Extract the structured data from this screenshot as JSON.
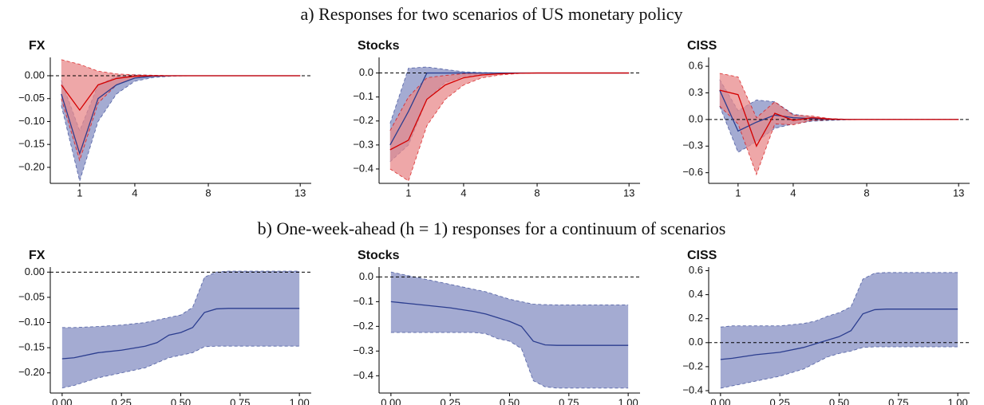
{
  "sections": [
    "a) Responses for two scenarios of US monetary policy",
    "b) One-week-ahead (h = 1) responses for a continuum of scenarios"
  ],
  "chart_data": [
    {
      "type": "line",
      "title": "FX",
      "hline": 0,
      "x": [
        0,
        1,
        2,
        3,
        4,
        5,
        6,
        7,
        8,
        9,
        10,
        11,
        12,
        13
      ],
      "xlim": [
        -0.6,
        13.6
      ],
      "xticks": [
        1,
        4,
        8,
        13
      ],
      "ylim": [
        -0.235,
        0.04
      ],
      "yticks": [
        {
          "value": 0,
          "label": "0.00"
        },
        {
          "value": -0.05,
          "label": "−0.05"
        },
        {
          "value": -0.1,
          "label": "−0.10"
        },
        {
          "value": -0.15,
          "label": "−0.15"
        },
        {
          "value": -0.2,
          "label": "−0.20"
        }
      ],
      "series": [
        {
          "color": "#2b3d8f",
          "band_color": "#a4abd2",
          "values": [
            -0.04,
            -0.17,
            -0.05,
            -0.02,
            -0.005,
            -0.001,
            0,
            0,
            0,
            0,
            0,
            0,
            0,
            0
          ],
          "lower": [
            -0.065,
            -0.23,
            -0.1,
            -0.04,
            -0.012,
            -0.004,
            -0.001,
            0,
            0,
            0,
            0,
            0,
            0,
            0
          ],
          "upper": [
            -0.01,
            -0.12,
            -0.02,
            -0.002,
            0.002,
            0.001,
            0,
            0,
            0,
            0,
            0,
            0,
            0,
            0
          ]
        },
        {
          "color": "#d40000",
          "band_color": "#e8898b",
          "values": [
            -0.02,
            -0.075,
            -0.02,
            -0.006,
            -0.001,
            0,
            0,
            0,
            0,
            0,
            0,
            0,
            0,
            0
          ],
          "lower": [
            -0.05,
            -0.185,
            -0.06,
            -0.02,
            -0.005,
            -0.001,
            0,
            0,
            0,
            0,
            0,
            0,
            0,
            0
          ],
          "upper": [
            0.035,
            0.025,
            0.01,
            0.004,
            0.002,
            0.001,
            0,
            0,
            0,
            0,
            0,
            0,
            0,
            0
          ]
        }
      ]
    },
    {
      "type": "line",
      "title": "Stocks",
      "hline": 0,
      "x": [
        0,
        1,
        2,
        3,
        4,
        5,
        6,
        7,
        8,
        9,
        10,
        11,
        12,
        13
      ],
      "xlim": [
        -0.6,
        13.6
      ],
      "xticks": [
        1,
        4,
        8,
        13
      ],
      "ylim": [
        -0.46,
        0.065
      ],
      "yticks": [
        {
          "value": 0,
          "label": "0.0"
        },
        {
          "value": -0.1,
          "label": "−0.1"
        },
        {
          "value": -0.2,
          "label": "−0.2"
        },
        {
          "value": -0.3,
          "label": "−0.3"
        },
        {
          "value": -0.4,
          "label": "−0.4"
        }
      ],
      "series": [
        {
          "color": "#2b3d8f",
          "band_color": "#a4abd2",
          "values": [
            -0.3,
            -0.16,
            0,
            0,
            0,
            0,
            0,
            0,
            0,
            0,
            0,
            0,
            0,
            0
          ],
          "lower": [
            -0.37,
            -0.3,
            -0.11,
            -0.04,
            -0.015,
            -0.005,
            0,
            0,
            0,
            0,
            0,
            0,
            0,
            0
          ],
          "upper": [
            -0.21,
            0.02,
            0.025,
            0.015,
            0.005,
            0.002,
            0,
            0,
            0,
            0,
            0,
            0,
            0,
            0
          ]
        },
        {
          "color": "#d40000",
          "band_color": "#e8898b",
          "values": [
            -0.32,
            -0.28,
            -0.11,
            -0.05,
            -0.02,
            -0.008,
            -0.003,
            -0.001,
            0,
            0,
            0,
            0,
            0,
            0
          ],
          "lower": [
            -0.4,
            -0.45,
            -0.22,
            -0.11,
            -0.05,
            -0.02,
            -0.008,
            -0.002,
            0,
            0,
            0,
            0,
            0,
            0
          ],
          "upper": [
            -0.24,
            -0.1,
            -0.02,
            -0.01,
            -0.003,
            0,
            0,
            0,
            0,
            0,
            0,
            0,
            0,
            0
          ]
        }
      ]
    },
    {
      "type": "line",
      "title": "CISS",
      "hline": 0,
      "x": [
        0,
        1,
        2,
        3,
        4,
        5,
        6,
        7,
        8,
        9,
        10,
        11,
        12,
        13
      ],
      "xlim": [
        -0.6,
        13.6
      ],
      "xticks": [
        1,
        4,
        8,
        13
      ],
      "ylim": [
        -0.72,
        0.7
      ],
      "yticks": [
        {
          "value": 0.6,
          "label": "0.6"
        },
        {
          "value": 0.3,
          "label": "0.3"
        },
        {
          "value": 0,
          "label": "0.0"
        },
        {
          "value": -0.3,
          "label": "−0.3"
        },
        {
          "value": -0.6,
          "label": "−0.6"
        }
      ],
      "series": [
        {
          "color": "#2b3d8f",
          "band_color": "#a4abd2",
          "values": [
            0.33,
            -0.13,
            -0.03,
            0.05,
            0.02,
            0.01,
            0.003,
            0,
            0,
            0,
            0,
            0,
            0,
            0
          ],
          "lower": [
            0.15,
            -0.37,
            -0.25,
            -0.1,
            -0.05,
            -0.02,
            -0.01,
            -0.003,
            0,
            0,
            0,
            0,
            0,
            0
          ],
          "upper": [
            0.45,
            0.1,
            0.22,
            0.2,
            0.06,
            0.03,
            0.01,
            0.003,
            0,
            0,
            0,
            0,
            0,
            0
          ]
        },
        {
          "color": "#d40000",
          "band_color": "#e8898b",
          "values": [
            0.33,
            0.28,
            -0.3,
            0.07,
            -0.01,
            0.02,
            0.005,
            0,
            0,
            0,
            0,
            0,
            0,
            0
          ],
          "lower": [
            0.15,
            -0.05,
            -0.62,
            -0.05,
            -0.06,
            -0.01,
            -0.005,
            0,
            0,
            0,
            0,
            0,
            0,
            0
          ],
          "upper": [
            0.52,
            0.48,
            0.02,
            0.2,
            0.05,
            0.04,
            0.01,
            0,
            0,
            0,
            0,
            0,
            0,
            0
          ]
        }
      ]
    },
    {
      "type": "line",
      "title": "FX",
      "hline": 0,
      "x": [
        0,
        0.05,
        0.15,
        0.25,
        0.35,
        0.4,
        0.45,
        0.5,
        0.55,
        0.6,
        0.65,
        0.7,
        0.8,
        0.9,
        1
      ],
      "xlim": [
        -0.05,
        1.05
      ],
      "xticks": [
        {
          "value": 0,
          "label": "0.00"
        },
        {
          "value": 0.25,
          "label": "0.25"
        },
        {
          "value": 0.5,
          "label": "0.50"
        },
        {
          "value": 0.75,
          "label": "0.75"
        },
        {
          "value": 1,
          "label": "1.00"
        }
      ],
      "ylim": [
        -0.24,
        0.01
      ],
      "yticks": [
        {
          "value": 0,
          "label": "0.00"
        },
        {
          "value": -0.05,
          "label": "−0.05"
        },
        {
          "value": -0.1,
          "label": "−0.10"
        },
        {
          "value": -0.15,
          "label": "−0.15"
        },
        {
          "value": -0.2,
          "label": "−0.20"
        }
      ],
      "series": [
        {
          "color": "#2b3d8f",
          "band_color": "#a4abd2",
          "values": [
            -0.172,
            -0.17,
            -0.16,
            -0.155,
            -0.147,
            -0.14,
            -0.125,
            -0.12,
            -0.11,
            -0.08,
            -0.073,
            -0.072,
            -0.072,
            -0.072,
            -0.072
          ],
          "lower": [
            -0.23,
            -0.225,
            -0.21,
            -0.2,
            -0.19,
            -0.18,
            -0.17,
            -0.165,
            -0.16,
            -0.148,
            -0.147,
            -0.147,
            -0.147,
            -0.147,
            -0.147
          ],
          "upper": [
            -0.11,
            -0.11,
            -0.108,
            -0.105,
            -0.1,
            -0.095,
            -0.09,
            -0.085,
            -0.07,
            -0.01,
            0,
            0.002,
            0.002,
            0.002,
            0.002
          ]
        }
      ]
    },
    {
      "type": "line",
      "title": "Stocks",
      "hline": 0,
      "x": [
        0,
        0.05,
        0.15,
        0.25,
        0.35,
        0.4,
        0.45,
        0.5,
        0.55,
        0.6,
        0.65,
        0.7,
        0.8,
        0.9,
        1
      ],
      "xlim": [
        -0.05,
        1.05
      ],
      "xticks": [
        {
          "value": 0,
          "label": "0.00"
        },
        {
          "value": 0.25,
          "label": "0.25"
        },
        {
          "value": 0.5,
          "label": "0.50"
        },
        {
          "value": 0.75,
          "label": "0.75"
        },
        {
          "value": 1,
          "label": "1.00"
        }
      ],
      "ylim": [
        -0.47,
        0.04
      ],
      "yticks": [
        {
          "value": 0,
          "label": "0.0"
        },
        {
          "value": -0.1,
          "label": "−0.1"
        },
        {
          "value": -0.2,
          "label": "−0.2"
        },
        {
          "value": -0.3,
          "label": "−0.3"
        },
        {
          "value": -0.4,
          "label": "−0.4"
        }
      ],
      "series": [
        {
          "color": "#2b3d8f",
          "band_color": "#a4abd2",
          "values": [
            -0.1,
            -0.105,
            -0.115,
            -0.125,
            -0.14,
            -0.15,
            -0.165,
            -0.18,
            -0.2,
            -0.26,
            -0.275,
            -0.277,
            -0.277,
            -0.277,
            -0.277
          ],
          "lower": [
            -0.225,
            -0.225,
            -0.225,
            -0.225,
            -0.225,
            -0.23,
            -0.25,
            -0.26,
            -0.29,
            -0.42,
            -0.445,
            -0.45,
            -0.45,
            -0.45,
            -0.45
          ],
          "upper": [
            0.02,
            0.01,
            -0.01,
            -0.03,
            -0.05,
            -0.06,
            -0.075,
            -0.09,
            -0.1,
            -0.11,
            -0.112,
            -0.113,
            -0.113,
            -0.113,
            -0.113
          ]
        }
      ]
    },
    {
      "type": "line",
      "title": "CISS",
      "hline": 0,
      "x": [
        0,
        0.05,
        0.15,
        0.25,
        0.35,
        0.4,
        0.45,
        0.5,
        0.55,
        0.6,
        0.65,
        0.7,
        0.8,
        0.9,
        1
      ],
      "xlim": [
        -0.05,
        1.05
      ],
      "xticks": [
        {
          "value": 0,
          "label": "0.00"
        },
        {
          "value": 0.25,
          "label": "0.25"
        },
        {
          "value": 0.5,
          "label": "0.50"
        },
        {
          "value": 0.75,
          "label": "0.75"
        },
        {
          "value": 1,
          "label": "1.00"
        }
      ],
      "ylim": [
        -0.42,
        0.63
      ],
      "yticks": [
        {
          "value": 0.6,
          "label": "0.6"
        },
        {
          "value": 0.4,
          "label": "0.4"
        },
        {
          "value": 0.2,
          "label": "0.2"
        },
        {
          "value": 0,
          "label": "0.0"
        },
        {
          "value": -0.2,
          "label": "−0.2"
        },
        {
          "value": -0.4,
          "label": "−0.4"
        }
      ],
      "series": [
        {
          "color": "#2b3d8f",
          "band_color": "#a4abd2",
          "values": [
            -0.14,
            -0.13,
            -0.1,
            -0.08,
            -0.04,
            -0.01,
            0.02,
            0.05,
            0.1,
            0.24,
            0.275,
            0.28,
            0.28,
            0.28,
            0.28
          ],
          "lower": [
            -0.38,
            -0.36,
            -0.32,
            -0.28,
            -0.22,
            -0.17,
            -0.12,
            -0.09,
            -0.07,
            -0.04,
            -0.035,
            -0.035,
            -0.035,
            -0.035,
            -0.035
          ],
          "upper": [
            0.13,
            0.14,
            0.14,
            0.14,
            0.16,
            0.18,
            0.22,
            0.25,
            0.3,
            0.53,
            0.58,
            0.585,
            0.585,
            0.585,
            0.585
          ]
        }
      ]
    }
  ]
}
